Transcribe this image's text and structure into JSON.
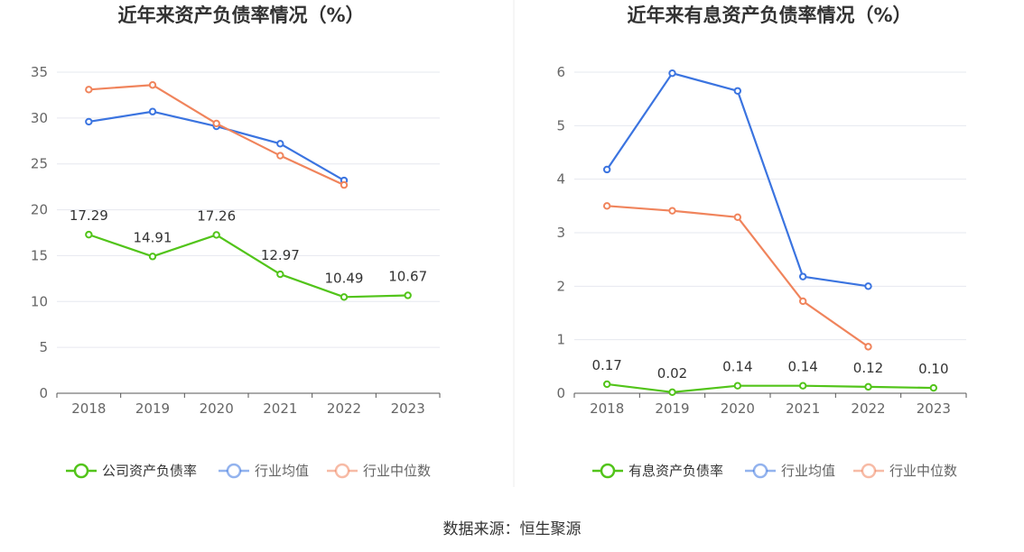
{
  "source_text": "数据来源：恒生聚源",
  "colors": {
    "company": "#52c41a",
    "avg": "#3b74e0",
    "median": "#f0845c",
    "grid": "#e6e8ef",
    "axis": "#555555"
  },
  "chart_data": [
    {
      "type": "line",
      "title": "近年来资产负债率情况（%）",
      "categories": [
        "2018",
        "2019",
        "2020",
        "2021",
        "2022",
        "2023"
      ],
      "ylim": [
        0,
        35
      ],
      "yticks": [
        0,
        5,
        10,
        15,
        20,
        25,
        30,
        35
      ],
      "grid": true,
      "legend_position": "bottom",
      "series": [
        {
          "name": "公司资产负债率",
          "color_key": "company",
          "values": [
            17.29,
            14.91,
            17.26,
            12.97,
            10.49,
            10.67
          ],
          "labels": [
            "17.29",
            "14.91",
            "17.26",
            "12.97",
            "10.49",
            "10.67"
          ]
        },
        {
          "name": "行业均值",
          "color_key": "avg",
          "values": [
            29.6,
            30.7,
            29.1,
            27.2,
            23.2,
            null
          ]
        },
        {
          "name": "行业中位数",
          "color_key": "median",
          "values": [
            33.1,
            33.6,
            29.4,
            25.9,
            22.7,
            null
          ]
        }
      ]
    },
    {
      "type": "line",
      "title": "近年来有息资产负债率情况（%）",
      "categories": [
        "2018",
        "2019",
        "2020",
        "2021",
        "2022",
        "2023"
      ],
      "ylim": [
        0,
        6
      ],
      "yticks": [
        0,
        1,
        2,
        3,
        4,
        5,
        6
      ],
      "grid": true,
      "legend_position": "bottom",
      "series": [
        {
          "name": "有息资产负债率",
          "color_key": "company",
          "values": [
            0.17,
            0.02,
            0.14,
            0.14,
            0.12,
            0.1
          ],
          "labels": [
            "0.17",
            "0.02",
            "0.14",
            "0.14",
            "0.12",
            "0.10"
          ]
        },
        {
          "name": "行业均值",
          "color_key": "avg",
          "values": [
            4.18,
            5.98,
            5.65,
            2.18,
            2.0,
            null
          ]
        },
        {
          "name": "行业中位数",
          "color_key": "median",
          "values": [
            3.5,
            3.41,
            3.29,
            1.72,
            0.87,
            null
          ]
        }
      ]
    }
  ]
}
